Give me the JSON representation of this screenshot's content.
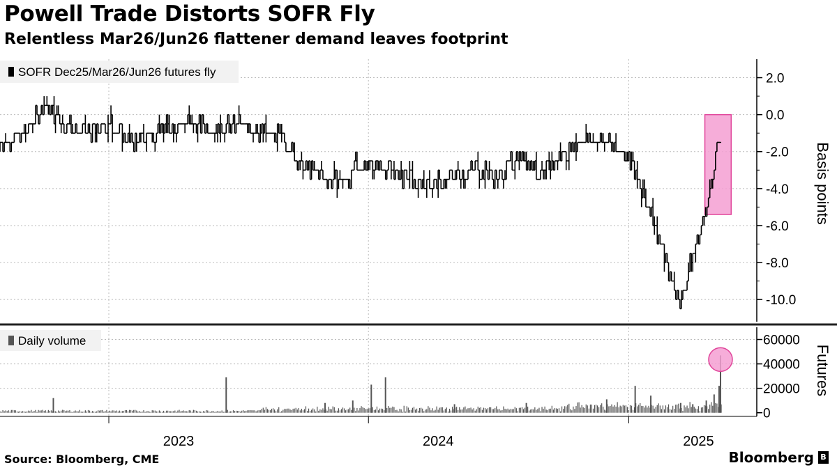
{
  "header": {
    "title": "Powell Trade Distorts SOFR Fly",
    "subtitle": "Relentless Mar26/Jun26 flattener demand leaves footprint"
  },
  "footer": {
    "source": "Source: Bloomberg, CME",
    "brand": "Bloomberg"
  },
  "colors": {
    "series": "#000000",
    "volume": "#555555",
    "highlight_fill": "#f59fd2",
    "highlight_stroke": "#e0449a",
    "grid": "#bbbbbb"
  },
  "chart_data": [
    {
      "type": "line",
      "style": "ohlc-bars",
      "legend": "SOFR Dec25/Mar26/Jun26 futures fly",
      "ylabel": "Basis points",
      "ylim": [
        -11.2,
        3.0
      ],
      "yticks": [
        2.0,
        0.0,
        -2.0,
        -4.0,
        -6.0,
        -8.0,
        -10.0
      ],
      "ytick_labels": [
        "2.0",
        "0.0",
        "-2.0",
        "-4.0",
        "-6.0",
        "-8.0",
        "-10.0"
      ],
      "xlim": [
        "2022-08-01",
        "2025-06-30"
      ],
      "xticks": [
        "2023",
        "2024",
        "2025"
      ],
      "grid": true,
      "legend_position": "top-left",
      "series": [
        {
          "x": [
            "2022-08-01",
            "2022-09-01",
            "2022-10-01",
            "2022-11-01",
            "2022-12-01",
            "2023-01-01",
            "2023-02-01",
            "2023-03-01",
            "2023-04-01",
            "2023-05-01",
            "2023-06-01",
            "2023-07-01",
            "2023-08-01",
            "2023-09-01",
            "2023-10-01",
            "2023-11-01",
            "2023-12-01",
            "2024-01-01",
            "2024-02-01",
            "2024-03-01",
            "2024-04-01",
            "2024-05-01",
            "2024-06-01",
            "2024-07-01",
            "2024-08-01",
            "2024-09-01",
            "2024-10-01",
            "2024-11-01",
            "2024-12-01",
            "2025-01-01",
            "2025-01-20",
            "2025-02-01",
            "2025-02-15",
            "2025-03-01",
            "2025-03-15",
            "2025-04-01",
            "2025-04-10",
            "2025-04-20",
            "2025-05-01",
            "2025-05-10"
          ],
          "values": [
            -1.5,
            -1.2,
            0.5,
            -0.5,
            -1.0,
            -0.5,
            -1.5,
            -1.0,
            -0.5,
            -0.5,
            -0.8,
            -0.5,
            -1.0,
            -1.2,
            -2.8,
            -3.5,
            -3.5,
            -2.5,
            -3.0,
            -3.6,
            -3.7,
            -3.4,
            -2.8,
            -3.5,
            -2.0,
            -3.4,
            -2.0,
            -1.3,
            -1.5,
            -2.2,
            -4.5,
            -5.2,
            -7.0,
            -8.8,
            -10.2,
            -7.5,
            -6.5,
            -5.0,
            -3.0,
            -0.8
          ]
        }
      ],
      "highlight": {
        "x_start": "2025-04-18",
        "x_end": "2025-05-25",
        "y_low": -5.4,
        "y_high": 0.0
      }
    },
    {
      "type": "bar",
      "legend": "Daily volume",
      "ylabel": "Futures",
      "ylim": [
        -3000,
        70000
      ],
      "yticks": [
        60000,
        40000,
        20000,
        0
      ],
      "ytick_labels": [
        "60000",
        "40000",
        "20000",
        "0"
      ],
      "grid": true,
      "legend_position": "top-left",
      "series": [
        {
          "x": [
            "2022-10-15",
            "2023-06-15",
            "2023-11-01",
            "2023-12-10",
            "2024-01-05",
            "2024-01-25",
            "2024-05-01",
            "2024-08-10",
            "2024-12-01",
            "2025-01-10",
            "2025-02-01",
            "2025-03-15",
            "2025-04-01",
            "2025-04-20",
            "2025-05-01",
            "2025-05-08",
            "2025-05-10"
          ],
          "values": [
            12000,
            29000,
            8000,
            10000,
            23000,
            29000,
            7000,
            8000,
            11000,
            22000,
            14000,
            8000,
            7000,
            10000,
            15000,
            22000,
            47000
          ]
        }
      ],
      "highlight": {
        "x": "2025-05-10",
        "y": 47000
      }
    }
  ]
}
